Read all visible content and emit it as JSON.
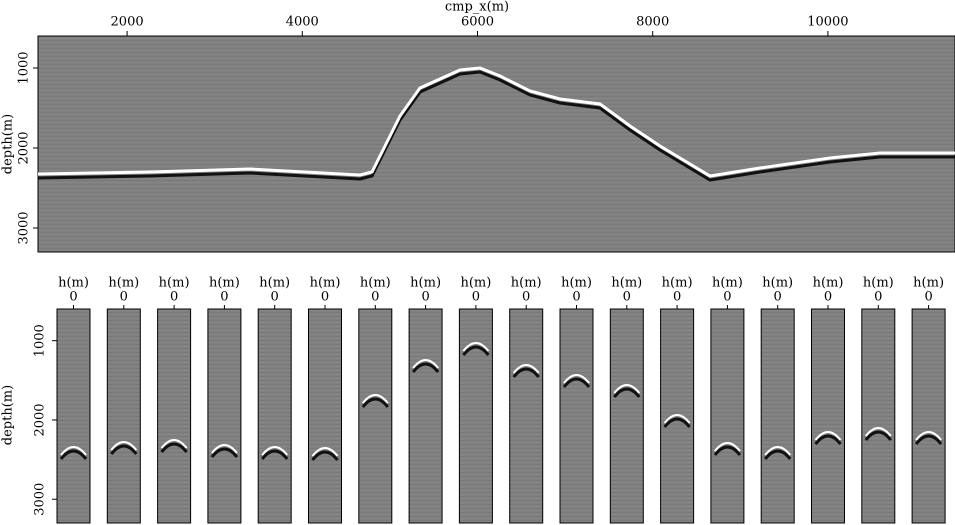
{
  "top": {
    "x_label": "cmp_x(m)",
    "xticks": [
      2000,
      4000,
      6000,
      8000,
      10000
    ],
    "xlim": [
      983,
      11451
    ],
    "y_label": "depth(m)",
    "yticks": [
      1000,
      2000,
      3000
    ],
    "ylim": [
      600,
      3300
    ]
  },
  "bottom": {
    "y_label": "depth(m)",
    "yticks": [
      1000,
      2000,
      3000
    ],
    "ylim": [
      600,
      3300
    ],
    "panels": [
      {
        "label": "h(m)",
        "tick": "0"
      },
      {
        "label": "h(m)",
        "tick": "0"
      },
      {
        "label": "h(m)",
        "tick": "0"
      },
      {
        "label": "h(m)",
        "tick": "0"
      },
      {
        "label": "h(m)",
        "tick": "0"
      },
      {
        "label": "h(m)",
        "tick": "0"
      },
      {
        "label": "h(m)",
        "tick": "0"
      },
      {
        "label": "h(m)",
        "tick": "0"
      },
      {
        "label": "h(m)",
        "tick": "0"
      },
      {
        "label": "h(m)",
        "tick": "0"
      },
      {
        "label": "h(m)",
        "tick": "0"
      },
      {
        "label": "h(m)",
        "tick": "0"
      },
      {
        "label": "h(m)",
        "tick": "0"
      },
      {
        "label": "h(m)",
        "tick": "0"
      },
      {
        "label": "h(m)",
        "tick": "0"
      },
      {
        "label": "h(m)",
        "tick": "0"
      },
      {
        "label": "h(m)",
        "tick": "0"
      },
      {
        "label": "h(m)",
        "tick": "0"
      }
    ]
  }
}
